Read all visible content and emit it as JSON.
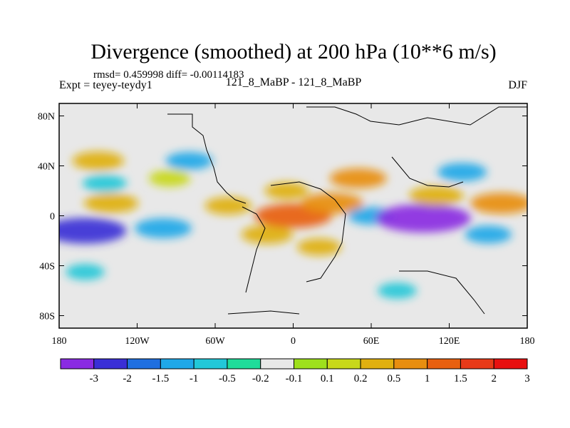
{
  "chart_data": {
    "type": "heatmap",
    "title": "Divergence (smoothed) at 200 hPa (10**6 m/s)",
    "stats_line": "rmsd= 0.459998 diff= -0.00114183",
    "left_label": "Expt = teyey-teydy1",
    "center_label": "121_8_MaBP - 121_8_MaBP",
    "right_label": "DJF",
    "xlim": [
      -180,
      180
    ],
    "ylim": [
      -90,
      90
    ],
    "x_ticks": [
      {
        "value": -180,
        "label": "180"
      },
      {
        "value": -120,
        "label": "120W"
      },
      {
        "value": -60,
        "label": "60W"
      },
      {
        "value": 0,
        "label": "0"
      },
      {
        "value": 60,
        "label": "60E"
      },
      {
        "value": 120,
        "label": "120E"
      },
      {
        "value": 180,
        "label": "180"
      }
    ],
    "y_ticks": [
      {
        "value": 80,
        "label": "80N"
      },
      {
        "value": 40,
        "label": "40N"
      },
      {
        "value": 0,
        "label": "0"
      },
      {
        "value": -40,
        "label": "40S"
      },
      {
        "value": -80,
        "label": "80S"
      }
    ],
    "colorbar": {
      "colors": [
        "#8a2be2",
        "#3a2fd6",
        "#1f6fe0",
        "#1fa8e8",
        "#22c8d8",
        "#1fdc9a",
        "#e8e8e8",
        "#9ee01c",
        "#c8d81a",
        "#e0b010",
        "#e88e10",
        "#e86010",
        "#e83a18",
        "#e81010"
      ],
      "labels": [
        "-3",
        "-2",
        "-1.5",
        "-1",
        "-0.5",
        "-0.2",
        "-0.1",
        "0.1",
        "0.2",
        "0.5",
        "1",
        "1.5",
        "2",
        "3"
      ]
    },
    "anomalies": [
      {
        "lon": -160,
        "lat": -12,
        "value": -2.0
      },
      {
        "lon": -150,
        "lat": 44,
        "value": 0.8
      },
      {
        "lon": -140,
        "lat": 10,
        "value": 0.9
      },
      {
        "lon": -145,
        "lat": 26,
        "value": -0.5
      },
      {
        "lon": -100,
        "lat": -10,
        "value": -1.0
      },
      {
        "lon": -95,
        "lat": 30,
        "value": 0.4
      },
      {
        "lon": -80,
        "lat": 44,
        "value": -0.6
      },
      {
        "lon": -50,
        "lat": 8,
        "value": 0.6
      },
      {
        "lon": -20,
        "lat": -15,
        "value": 0.8
      },
      {
        "lon": -5,
        "lat": 20,
        "value": 0.5
      },
      {
        "lon": 0,
        "lat": 0,
        "value": 1.8
      },
      {
        "lon": 30,
        "lat": 10,
        "value": 1.2
      },
      {
        "lon": 20,
        "lat": -25,
        "value": 0.5
      },
      {
        "lon": 50,
        "lat": 30,
        "value": 1.0
      },
      {
        "lon": 60,
        "lat": 0,
        "value": -0.6
      },
      {
        "lon": 100,
        "lat": -2,
        "value": -2.5
      },
      {
        "lon": 110,
        "lat": 16,
        "value": 0.9
      },
      {
        "lon": 130,
        "lat": 35,
        "value": -0.7
      },
      {
        "lon": 160,
        "lat": 10,
        "value": 1.2
      },
      {
        "lon": 150,
        "lat": -15,
        "value": -0.6
      },
      {
        "lon": -160,
        "lat": -45,
        "value": -0.3
      },
      {
        "lon": 80,
        "lat": -60,
        "value": -0.3
      }
    ]
  }
}
